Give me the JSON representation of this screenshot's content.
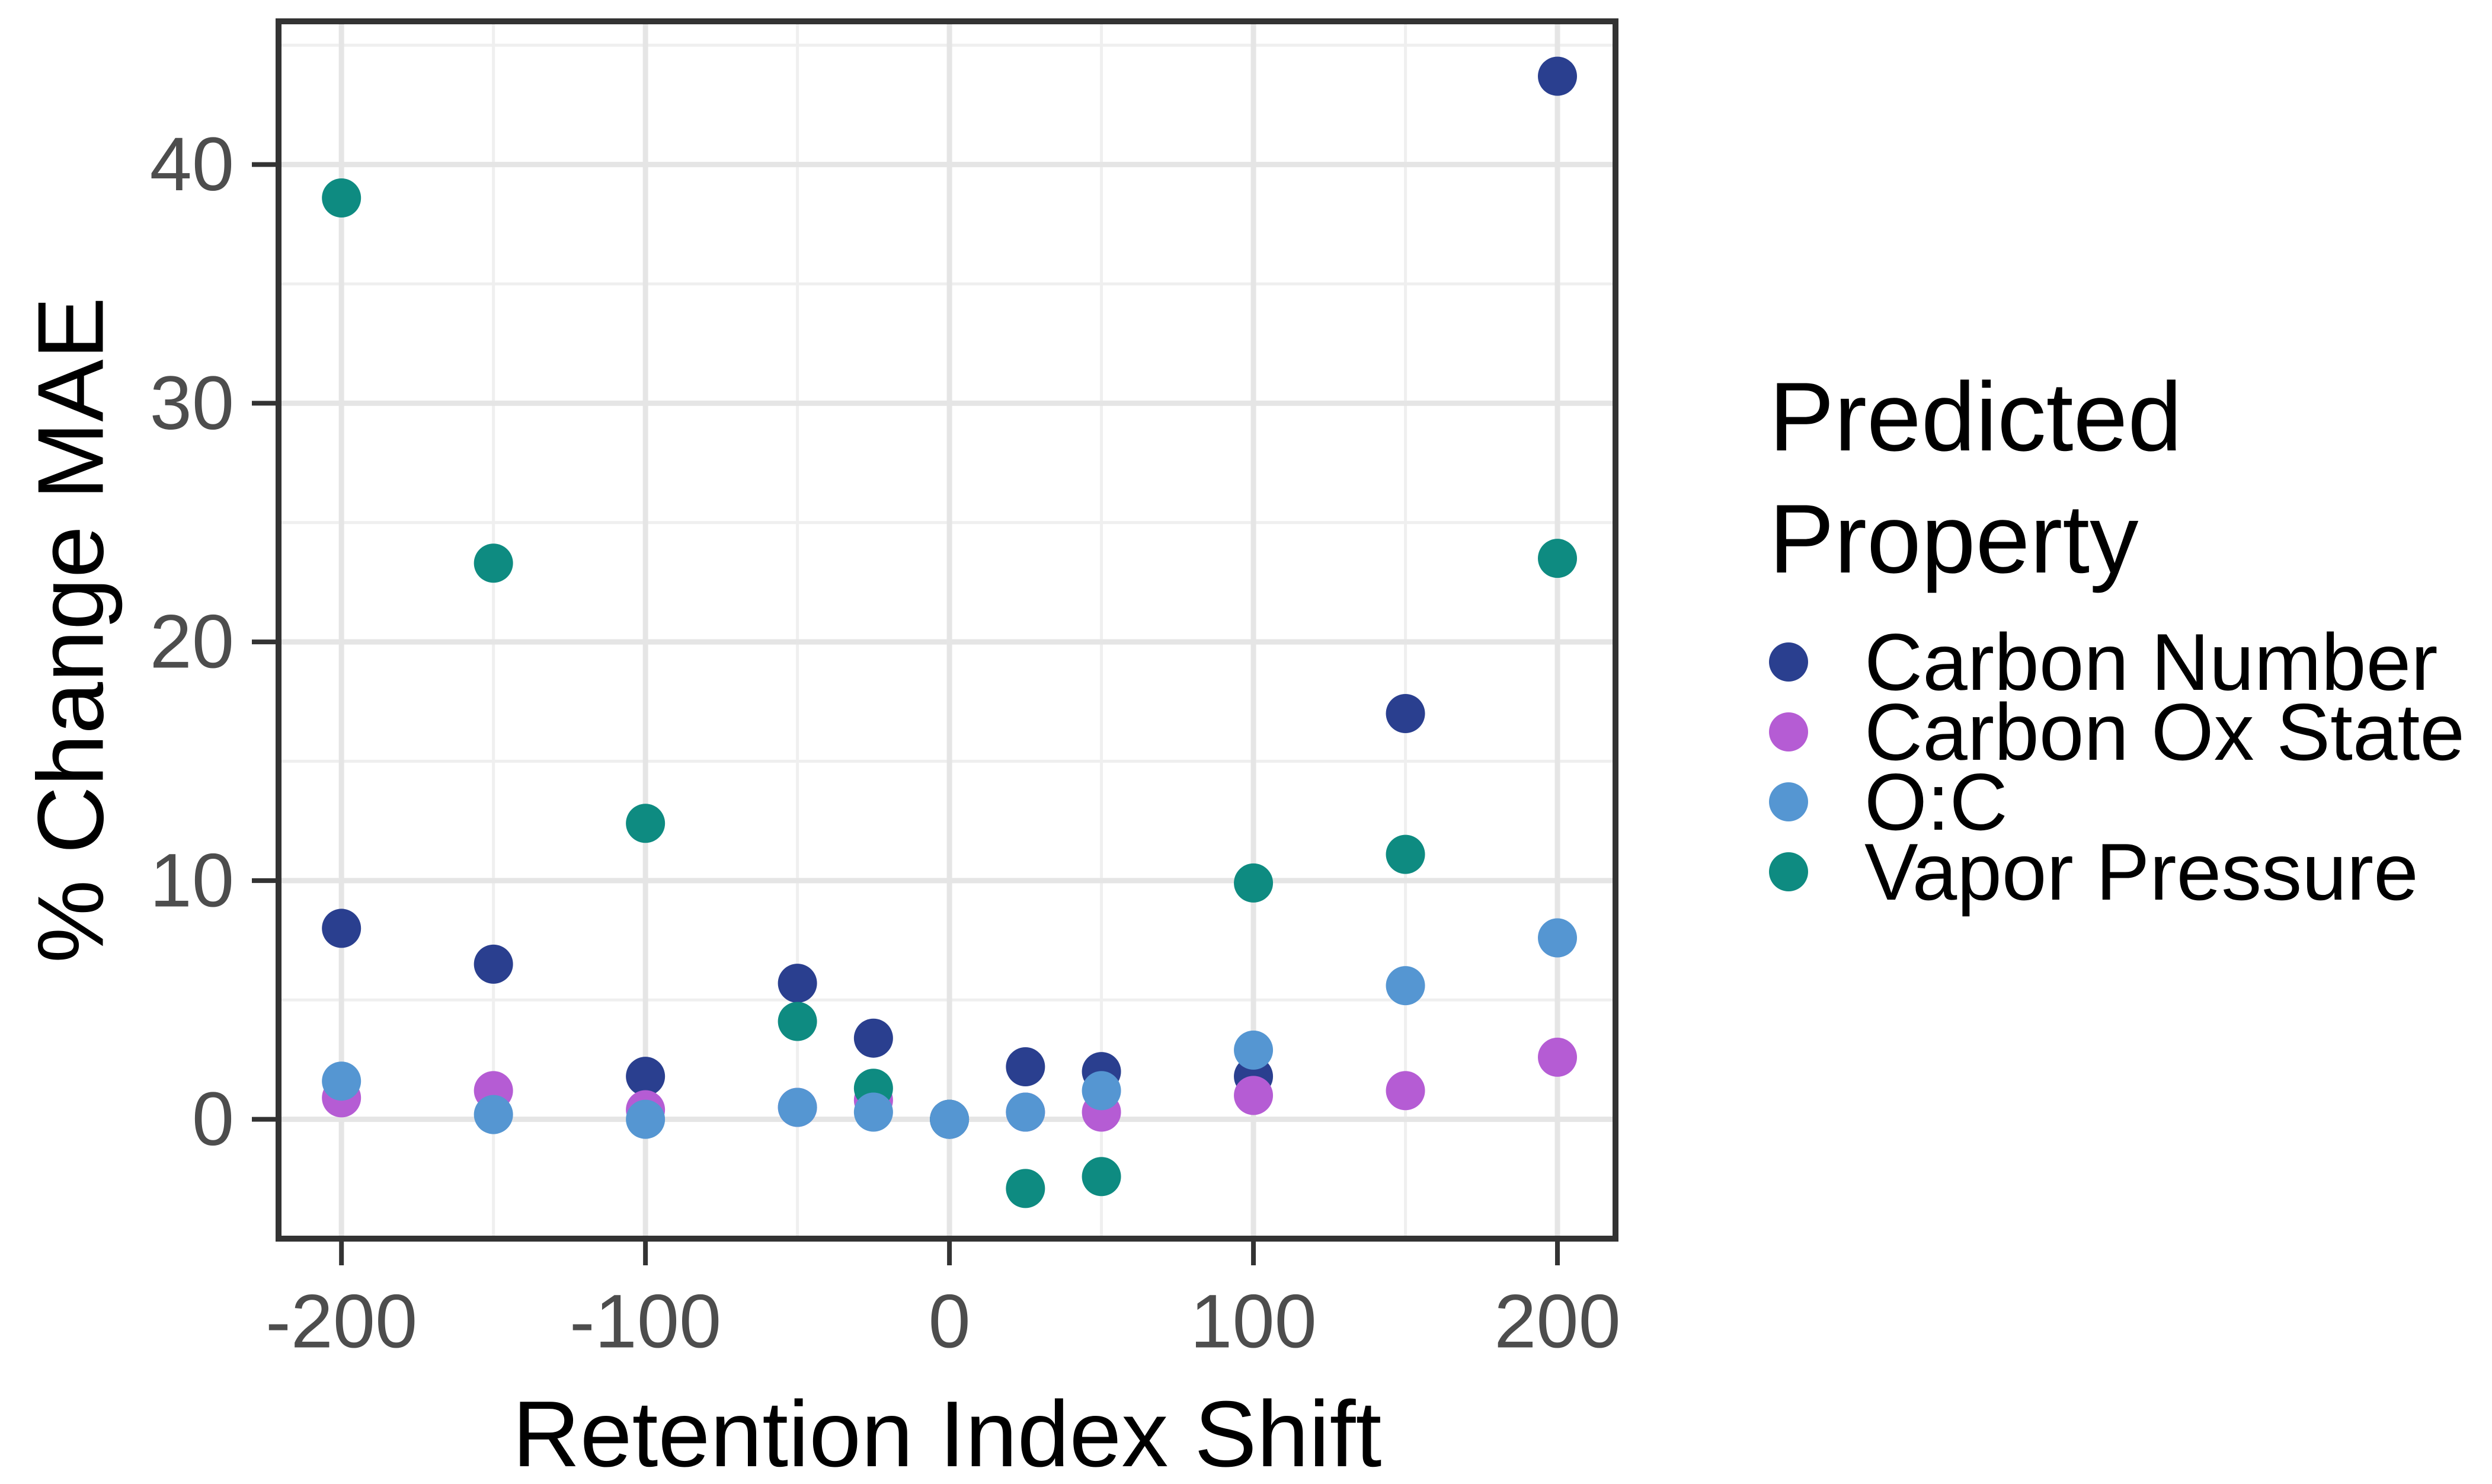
{
  "chart_data": {
    "type": "scatter",
    "title": "",
    "xlabel": "Retention Index Shift",
    "ylabel": "% Change MAE",
    "x": [
      -200,
      -150,
      -100,
      -50,
      -25,
      0,
      25,
      50,
      100,
      150,
      200
    ],
    "series": [
      {
        "name": "Carbon Number",
        "color": "#2a3f8f",
        "values": [
          8.0,
          6.5,
          1.8,
          5.7,
          3.4,
          0.0,
          2.2,
          2.0,
          1.8,
          17.0,
          43.7
        ]
      },
      {
        "name": "Carbon Ox State",
        "color": "#b55cd4",
        "values": [
          0.9,
          1.2,
          0.4,
          0.5,
          0.8,
          0.0,
          0.3,
          0.3,
          1.0,
          1.2,
          2.6
        ]
      },
      {
        "name": "O:C",
        "color": "#5596d2",
        "values": [
          1.6,
          0.2,
          0.0,
          0.5,
          0.3,
          0.0,
          0.3,
          1.2,
          2.9,
          5.6,
          7.6
        ]
      },
      {
        "name": "Vapor Pressure",
        "color": "#0e8b81",
        "values": [
          38.6,
          23.3,
          12.4,
          4.1,
          1.3,
          0.0,
          -2.9,
          -2.4,
          9.9,
          11.1,
          23.5
        ]
      }
    ],
    "draw_order": [
      "Carbon Number",
      "Carbon Ox State",
      "Vapor Pressure",
      "O:C"
    ],
    "x_ticks": [
      -200,
      -100,
      0,
      100,
      200
    ],
    "y_ticks": [
      0,
      10,
      20,
      30,
      40
    ],
    "x_minor_gridlines": [
      -150,
      -50,
      50,
      150
    ],
    "y_minor_gridlines": [
      -5,
      5,
      15,
      25,
      35,
      45
    ],
    "xlim": [
      -220.7,
      219.1
    ],
    "ylim": [
      -5.0,
      46.0
    ],
    "grid": true,
    "point_radius_px": 33,
    "legend_position": "right"
  },
  "axes": {
    "x_title": "Retention Index Shift",
    "y_title": "% Change MAE"
  },
  "legend": {
    "title": "Predicted Property",
    "items": [
      {
        "label": "Carbon Number",
        "color": "#2a3f8f"
      },
      {
        "label": "Carbon Ox State",
        "color": "#b55cd4"
      },
      {
        "label": "O:C",
        "color": "#5596d2"
      },
      {
        "label": "Vapor Pressure",
        "color": "#0e8b81"
      }
    ]
  },
  "colors": {
    "tick_text": "#4d4d4d",
    "axis_border": "#333333",
    "grid_major": "#e5e5e5",
    "grid_minor": "#efefef",
    "background": "#ffffff"
  }
}
